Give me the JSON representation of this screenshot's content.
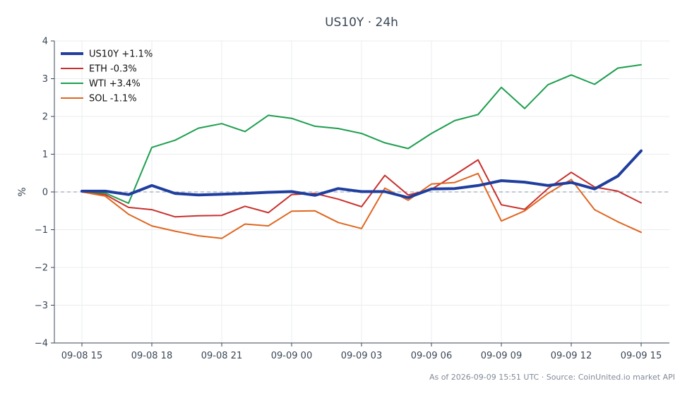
{
  "chart_data": {
    "type": "line",
    "title": "US10Y · 24h",
    "ylabel": "%",
    "xlabel": "",
    "ylim": [
      -4,
      4
    ],
    "yticks": [
      4,
      3,
      2,
      1,
      0,
      -1,
      -2,
      -3,
      -4
    ],
    "ytick_labels": [
      "4",
      "3",
      "2",
      "1",
      "0",
      "−1",
      "−2",
      "−3",
      "−4"
    ],
    "xticks": [
      "09-08 15",
      "09-08 18",
      "09-08 21",
      "09-09 00",
      "09-09 03",
      "09-09 06",
      "09-09 09",
      "09-09 12",
      "09-09 15"
    ],
    "x": [
      "09-08 15:00",
      "09-08 16:00",
      "09-08 17:00",
      "09-08 18:00",
      "09-08 19:00",
      "09-08 20:00",
      "09-08 21:00",
      "09-08 22:00",
      "09-08 23:00",
      "09-09 00:00",
      "09-09 01:00",
      "09-09 02:00",
      "09-09 03:00",
      "09-09 04:00",
      "09-09 05:00",
      "09-09 06:00",
      "09-09 07:00",
      "09-09 08:00",
      "09-09 09:00",
      "09-09 10:00",
      "09-09 11:00",
      "09-09 12:00",
      "09-09 13:00",
      "09-09 14:00",
      "09-09 15:00"
    ],
    "grid": true,
    "zero_line": true,
    "legend_position": "top-left",
    "series": [
      {
        "name": "US10Y +1.1%",
        "color": "#1f3e9e",
        "width": 4,
        "values": [
          0.02,
          0.02,
          -0.07,
          0.17,
          -0.04,
          -0.08,
          -0.06,
          -0.04,
          -0.01,
          0.01,
          -0.09,
          0.09,
          0.01,
          0.01,
          -0.15,
          0.08,
          0.09,
          0.17,
          0.3,
          0.26,
          0.17,
          0.25,
          0.08,
          0.42,
          1.09
        ]
      },
      {
        "name": "ETH -0.3%",
        "color": "#c9302c",
        "width": 2,
        "values": [
          0.01,
          -0.07,
          -0.41,
          -0.47,
          -0.66,
          -0.63,
          -0.62,
          -0.38,
          -0.55,
          -0.07,
          -0.04,
          -0.19,
          -0.39,
          0.44,
          -0.08,
          0.07,
          0.45,
          0.85,
          -0.34,
          -0.46,
          0.09,
          0.52,
          0.13,
          0.02,
          -0.29
        ]
      },
      {
        "name": "WTI +3.4%",
        "color": "#1e9e4e",
        "width": 2,
        "values": [
          0.01,
          -0.03,
          -0.3,
          1.18,
          1.37,
          1.69,
          1.81,
          1.6,
          2.03,
          1.95,
          1.74,
          1.68,
          1.55,
          1.3,
          1.15,
          1.55,
          1.89,
          2.05,
          2.77,
          2.21,
          2.84,
          3.1,
          2.85,
          3.28,
          3.37
        ]
      },
      {
        "name": "SOL -1.1%",
        "color": "#e06620",
        "width": 2,
        "values": [
          0.0,
          -0.11,
          -0.59,
          -0.9,
          -1.04,
          -1.16,
          -1.23,
          -0.85,
          -0.9,
          -0.51,
          -0.5,
          -0.81,
          -0.97,
          0.1,
          -0.22,
          0.21,
          0.25,
          0.49,
          -0.77,
          -0.5,
          -0.04,
          0.33,
          -0.47,
          -0.79,
          -1.07
        ]
      }
    ]
  },
  "footer": {
    "text": "As of 2026-09-09 15:51 UTC · Source: CoinUnited.io market API"
  }
}
